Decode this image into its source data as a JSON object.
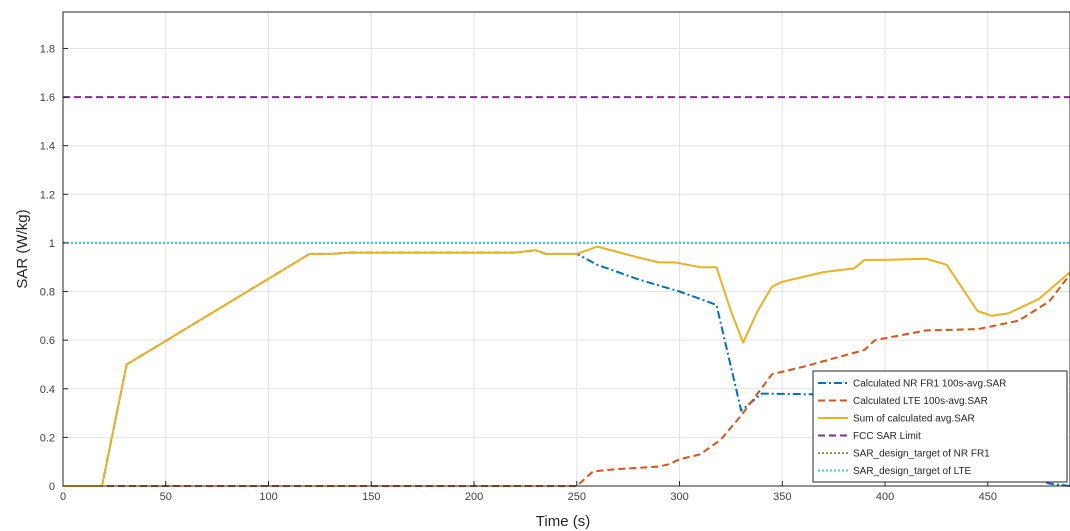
{
  "chart_data": {
    "type": "line",
    "title": "",
    "xlabel": "Time (s)",
    "ylabel": "SAR (W/kg)",
    "xlim": [
      0,
      490
    ],
    "ylim": [
      0,
      1.95
    ],
    "grid": true,
    "legend_position": "bottom-right",
    "x_ticks": [
      "0",
      "50",
      "100",
      "150",
      "200",
      "250",
      "300",
      "350",
      "400",
      "450"
    ],
    "y_ticks": [
      "0",
      "0.2",
      "0.4",
      "0.6",
      "0.8",
      "1",
      "1.2",
      "1.4",
      "1.6",
      "1.8"
    ],
    "x_tick_values": [
      0,
      50,
      100,
      150,
      200,
      250,
      300,
      350,
      400,
      450
    ],
    "y_tick_values": [
      0,
      0.2,
      0.4,
      0.6,
      0.8,
      1,
      1.2,
      1.4,
      1.6,
      1.8
    ],
    "series": [
      {
        "name": "Calculated NR FR1 100s-avg.SAR",
        "color": "#0072BD",
        "dash": "dashdot",
        "points": [
          [
            0,
            0
          ],
          [
            19,
            0
          ],
          [
            31,
            0.5
          ],
          [
            120,
            0.955
          ],
          [
            130,
            0.955
          ],
          [
            140,
            0.96
          ],
          [
            220,
            0.96
          ],
          [
            230,
            0.97
          ],
          [
            235,
            0.955
          ],
          [
            250,
            0.955
          ],
          [
            260,
            0.91
          ],
          [
            280,
            0.85
          ],
          [
            300,
            0.8
          ],
          [
            318,
            0.745
          ],
          [
            322,
            0.6
          ],
          [
            330,
            0.31
          ],
          [
            340,
            0.38
          ],
          [
            380,
            0.375
          ],
          [
            420,
            0.2
          ],
          [
            450,
            0.1
          ],
          [
            480,
            0.01
          ],
          [
            490,
            0.0
          ]
        ]
      },
      {
        "name": "Calculated LTE 100s-avg.SAR",
        "color": "#D95319",
        "dash": "dash",
        "points": [
          [
            0,
            0
          ],
          [
            250,
            0
          ],
          [
            258,
            0.06
          ],
          [
            270,
            0.07
          ],
          [
            290,
            0.08
          ],
          [
            295,
            0.09
          ],
          [
            300,
            0.11
          ],
          [
            310,
            0.13
          ],
          [
            315,
            0.16
          ],
          [
            320,
            0.19
          ],
          [
            330,
            0.29
          ],
          [
            345,
            0.46
          ],
          [
            360,
            0.49
          ],
          [
            390,
            0.56
          ],
          [
            395,
            0.6
          ],
          [
            420,
            0.64
          ],
          [
            445,
            0.645
          ],
          [
            465,
            0.68
          ],
          [
            480,
            0.76
          ],
          [
            490,
            0.87
          ]
        ]
      },
      {
        "name": "Sum of calculated avg.SAR",
        "color": "#EDB120",
        "dash": "solid",
        "points": [
          [
            0,
            0
          ],
          [
            19,
            0
          ],
          [
            31,
            0.5
          ],
          [
            120,
            0.955
          ],
          [
            130,
            0.955
          ],
          [
            140,
            0.96
          ],
          [
            220,
            0.96
          ],
          [
            230,
            0.97
          ],
          [
            235,
            0.955
          ],
          [
            250,
            0.955
          ],
          [
            260,
            0.985
          ],
          [
            280,
            0.94
          ],
          [
            290,
            0.92
          ],
          [
            298,
            0.92
          ],
          [
            310,
            0.9
          ],
          [
            318,
            0.9
          ],
          [
            325,
            0.72
          ],
          [
            331,
            0.59
          ],
          [
            338,
            0.72
          ],
          [
            345,
            0.82
          ],
          [
            350,
            0.84
          ],
          [
            360,
            0.86
          ],
          [
            370,
            0.88
          ],
          [
            385,
            0.895
          ],
          [
            390,
            0.93
          ],
          [
            400,
            0.93
          ],
          [
            420,
            0.935
          ],
          [
            430,
            0.91
          ],
          [
            445,
            0.72
          ],
          [
            452,
            0.7
          ],
          [
            460,
            0.71
          ],
          [
            475,
            0.77
          ],
          [
            490,
            0.88
          ]
        ]
      },
      {
        "name": "FCC SAR Limit",
        "color": "#7E2F8E",
        "dash": "dash",
        "points": [
          [
            0,
            1.6
          ],
          [
            490,
            1.6
          ]
        ]
      },
      {
        "name": "SAR_design_target of NR FR1",
        "color": "#77AC30",
        "dash": "dot",
        "points": [
          [
            0,
            1.0
          ],
          [
            490,
            1.0
          ]
        ]
      },
      {
        "name": "SAR_design_target of LTE",
        "color": "#4DBEEE",
        "dash": "dot",
        "points": [
          [
            0,
            1.0
          ],
          [
            490,
            1.0
          ]
        ]
      }
    ]
  }
}
